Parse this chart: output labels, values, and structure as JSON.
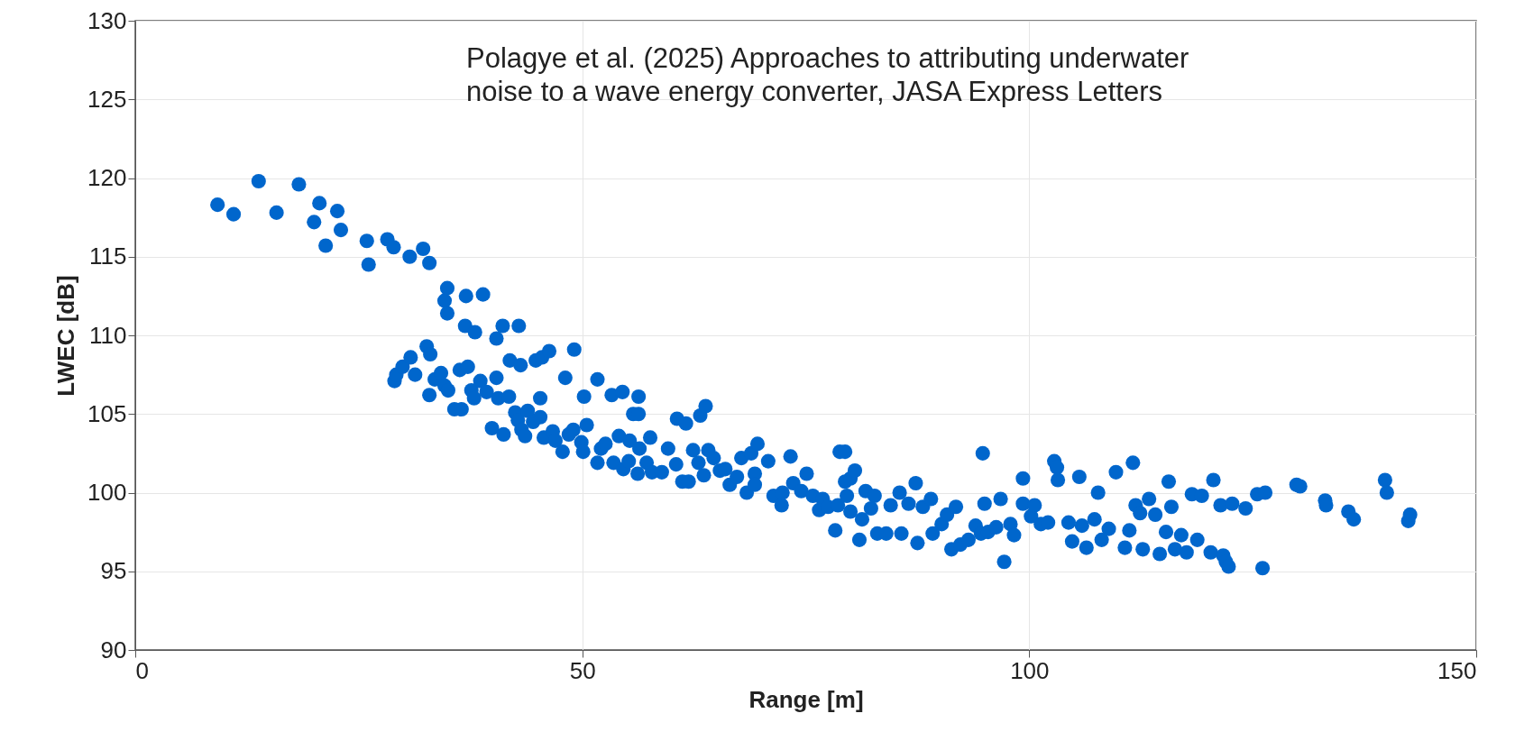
{
  "chart_data": {
    "type": "scatter",
    "xlabel": "Range [m]",
    "ylabel": "LWEC [dB]",
    "annotations": [
      "Polagye et al. (2025) Approaches to attributing underwater",
      "noise to a wave energy converter, JASA Express Letters"
    ],
    "xlim": [
      0,
      150
    ],
    "xticks": [
      0,
      50,
      100,
      150
    ],
    "ylim": [
      90,
      130
    ],
    "yticks": [
      90,
      95,
      100,
      105,
      110,
      115,
      120,
      125,
      130
    ],
    "grid": true,
    "marker": "circle",
    "series": [
      {
        "color": "#0066cc",
        "x": [
          9.2,
          11,
          13.8,
          15.8,
          18.3,
          20,
          20.6,
          21.3,
          22.6,
          23,
          25.9,
          26.1,
          28.2,
          28.9,
          30.7,
          32.2,
          32.9,
          34.6,
          34.9,
          34.9,
          37,
          38.9,
          36.9,
          38,
          40.4,
          41.1,
          42.9,
          41.9,
          43.1,
          44.8,
          45.5,
          46.3,
          49.1,
          48.1,
          50.2,
          51.7,
          53.3,
          54.5,
          55.7,
          56.3,
          56.3,
          60.6,
          61.6,
          63.2,
          63.8,
          29,
          29.2,
          29.9,
          30.8,
          31.3,
          32.6,
          33,
          32.9,
          33.5,
          34.2,
          34.6,
          35,
          35.7,
          36.5,
          36.3,
          37.2,
          37.6,
          37.9,
          38.6,
          39.3,
          39.9,
          40.4,
          40.6,
          41.2,
          41.8,
          42.5,
          42.8,
          43.2,
          43.6,
          43.9,
          44.5,
          45.3,
          45.3,
          45.7,
          46.7,
          47,
          47.8,
          48.5,
          49,
          49.9,
          50.1,
          50.5,
          51.7,
          52.1,
          52.6,
          53.5,
          54.1,
          54.6,
          55.2,
          55.3,
          56.2,
          56.4,
          57.2,
          57.6,
          57.8,
          58.9,
          59.6,
          60.5,
          61.2,
          61.9,
          62.4,
          63,
          63.6,
          64.1,
          64.7,
          65.4,
          66,
          66.5,
          67.3,
          67.8,
          68.4,
          68.9,
          69.3,
          69.6,
          69.3,
          70.8,
          71.4,
          72.3,
          72.4,
          73.3,
          73.6,
          74.5,
          75.1,
          75.8,
          76.5,
          76.9,
          77.5,
          78.3,
          78.6,
          78.8,
          79.4,
          79.4,
          79.6,
          80,
          80,
          80.5,
          81,
          81.3,
          81.7,
          82.3,
          82.7,
          83,
          84,
          84.5,
          85.5,
          85.7,
          86.5,
          87.5,
          87.3,
          88.1,
          89,
          89.2,
          90.2,
          90.8,
          91.3,
          91.8,
          92.3,
          93.2,
          94,
          94.6,
          94.8,
          95,
          95.4,
          96.3,
          96.8,
          97.2,
          97.9,
          98.3,
          99.3,
          99.3,
          100.2,
          100.6,
          101.3,
          102.1,
          102.8,
          103.1,
          103.2,
          104.4,
          104.8,
          105.6,
          105.9,
          106.4,
          107.3,
          107.7,
          108.1,
          108.9,
          109.7,
          110.7,
          111.2,
          111.6,
          111.9,
          112.4,
          112.7,
          113.4,
          114.1,
          114.6,
          115.3,
          115.6,
          115.9,
          116.3,
          117,
          117.6,
          118.2,
          118.8,
          119.3,
          120.3,
          120.6,
          121.4,
          121.7,
          122,
          122.3,
          122.7,
          124.2,
          125.5,
          126.1,
          126.4,
          129.9,
          130.3,
          133.1,
          133.2,
          135.7,
          136.3,
          139.8,
          140,
          142.4,
          142.6
        ],
        "values": [
          118.3,
          117.7,
          119.8,
          117.8,
          119.6,
          117.2,
          118.4,
          115.7,
          117.9,
          116.7,
          116,
          114.5,
          116.1,
          115.6,
          115,
          115.5,
          114.6,
          112.2,
          113,
          111.4,
          112.5,
          112.6,
          110.6,
          110.2,
          109.8,
          110.6,
          110.6,
          108.4,
          108.1,
          108.4,
          108.6,
          109,
          109.1,
          107.3,
          106.1,
          107.2,
          106.2,
          106.4,
          105,
          106.1,
          105,
          104.7,
          104.4,
          104.9,
          105.5,
          107.1,
          107.5,
          108,
          108.6,
          107.5,
          109.3,
          108.8,
          106.2,
          107.2,
          107.6,
          106.8,
          106.5,
          105.3,
          105.3,
          107.8,
          108,
          106.5,
          106,
          107.1,
          106.4,
          104.1,
          107.3,
          106,
          103.7,
          106.1,
          105.1,
          104.6,
          104,
          103.6,
          105.2,
          104.5,
          104.8,
          106,
          103.5,
          103.9,
          103.3,
          102.6,
          103.7,
          104,
          103.2,
          102.6,
          104.3,
          101.9,
          102.8,
          103.1,
          101.9,
          103.6,
          101.5,
          102,
          103.3,
          101.2,
          102.8,
          101.9,
          103.5,
          101.3,
          101.3,
          102.8,
          101.8,
          100.7,
          100.7,
          102.7,
          101.9,
          101.1,
          102.7,
          102.2,
          101.4,
          101.5,
          100.5,
          101,
          102.2,
          100,
          102.5,
          101.2,
          103.1,
          100.5,
          102,
          99.8,
          99.2,
          100,
          102.3,
          100.6,
          100.1,
          101.2,
          99.8,
          98.9,
          99.6,
          99.1,
          97.6,
          99.2,
          102.6,
          102.6,
          100.7,
          99.8,
          100.9,
          98.8,
          101.4,
          97,
          98.3,
          100.1,
          99,
          99.8,
          97.4,
          97.4,
          99.2,
          100,
          97.4,
          99.3,
          96.8,
          100.6,
          99.1,
          99.6,
          97.4,
          98,
          98.6,
          96.4,
          99.1,
          96.7,
          97,
          97.9,
          97.4,
          102.5,
          99.3,
          97.5,
          97.8,
          99.6,
          95.6,
          98,
          97.3,
          99.3,
          100.9,
          98.5,
          99.2,
          98,
          98.1,
          102,
          101.6,
          100.8,
          98.1,
          96.9,
          101,
          97.9,
          96.5,
          98.3,
          100,
          97,
          97.7,
          101.3,
          96.5,
          97.6,
          101.9,
          99.2,
          98.7,
          96.4,
          99.6,
          98.6,
          96.1,
          97.5,
          100.7,
          99.1,
          96.4,
          97.3,
          96.2,
          99.9,
          97,
          99.8,
          96.2,
          100.8,
          99.2,
          96,
          95.6,
          95.3,
          99.3,
          99,
          99.9,
          95.2,
          100,
          100.5,
          100.4,
          99.5,
          99.2,
          98.8,
          98.3,
          100.8,
          100,
          98.2,
          98.6
        ]
      }
    ]
  }
}
